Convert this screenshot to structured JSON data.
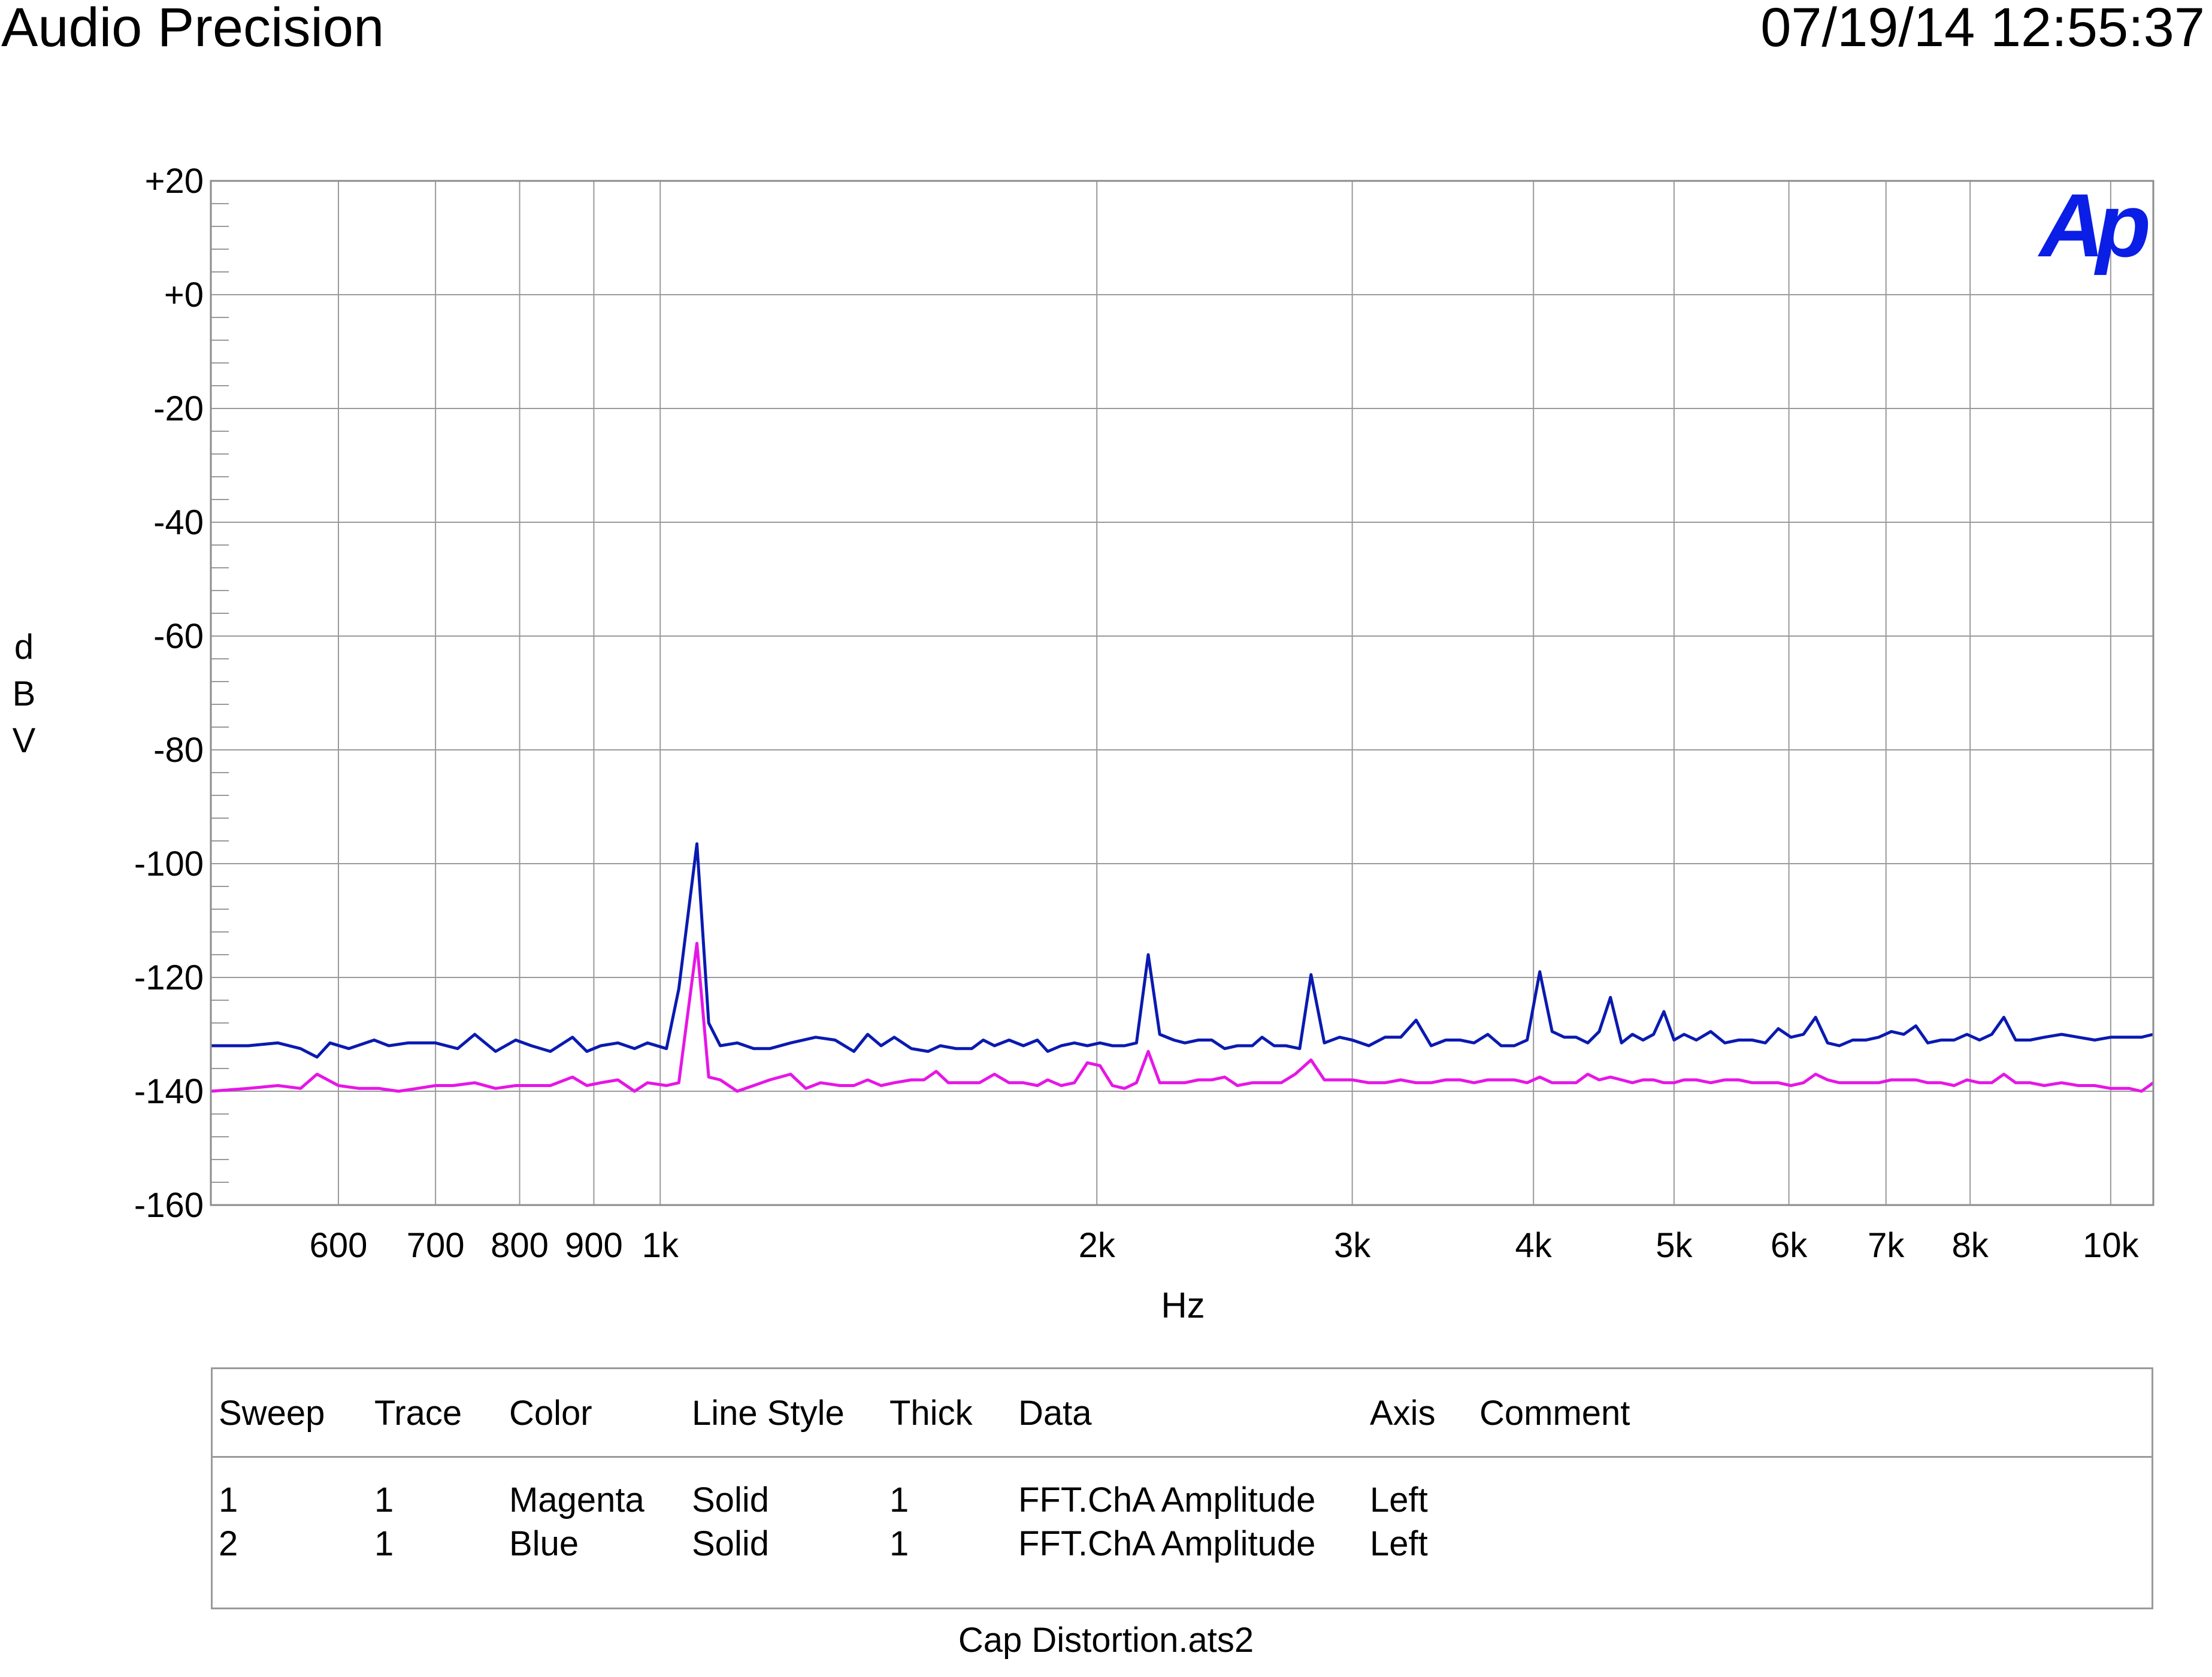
{
  "header": {
    "title": "Audio Precision",
    "timestamp": "07/19/14 12:55:37"
  },
  "logo": {
    "text": "Ap",
    "color": "#0a1ee6"
  },
  "chart_data": {
    "type": "line",
    "xlabel": "Hz",
    "ylabel": "dBV",
    "x_scale": "log",
    "xlim": [
      490,
      10700
    ],
    "ylim": [
      -160,
      20
    ],
    "grid": true,
    "x_ticks": [
      {
        "value": 600,
        "label": "600"
      },
      {
        "value": 700,
        "label": "700"
      },
      {
        "value": 800,
        "label": "800"
      },
      {
        "value": 900,
        "label": "900"
      },
      {
        "value": 1000,
        "label": "1k"
      },
      {
        "value": 2000,
        "label": "2k"
      },
      {
        "value": 3000,
        "label": "3k"
      },
      {
        "value": 4000,
        "label": "4k"
      },
      {
        "value": 5000,
        "label": "5k"
      },
      {
        "value": 6000,
        "label": "6k"
      },
      {
        "value": 7000,
        "label": "7k"
      },
      {
        "value": 8000,
        "label": "8k"
      },
      {
        "value": 10000,
        "label": "10k"
      }
    ],
    "y_ticks": [
      {
        "value": 20,
        "label": "+20"
      },
      {
        "value": 0,
        "label": "+0"
      },
      {
        "value": -20,
        "label": "-20"
      },
      {
        "value": -40,
        "label": "-40"
      },
      {
        "value": -60,
        "label": "-60"
      },
      {
        "value": -80,
        "label": "-80"
      },
      {
        "value": -100,
        "label": "-100"
      },
      {
        "value": -120,
        "label": "-120"
      },
      {
        "value": -140,
        "label": "-140"
      },
      {
        "value": -160,
        "label": "-160"
      }
    ],
    "series": [
      {
        "color": "#0a1ab0",
        "points": [
          [
            490,
            -132
          ],
          [
            520,
            -132
          ],
          [
            545,
            -131.5
          ],
          [
            565,
            -132.5
          ],
          [
            580,
            -134
          ],
          [
            592,
            -131.5
          ],
          [
            610,
            -132.5
          ],
          [
            635,
            -131
          ],
          [
            650,
            -132
          ],
          [
            670,
            -131.5
          ],
          [
            700,
            -131.5
          ],
          [
            725,
            -132.5
          ],
          [
            745,
            -130
          ],
          [
            770,
            -133
          ],
          [
            795,
            -131
          ],
          [
            815,
            -132
          ],
          [
            840,
            -133
          ],
          [
            870,
            -130.5
          ],
          [
            890,
            -133
          ],
          [
            910,
            -132
          ],
          [
            935,
            -131.5
          ],
          [
            960,
            -132.5
          ],
          [
            980,
            -131.5
          ],
          [
            1010,
            -132.5
          ],
          [
            1030,
            -122
          ],
          [
            1060,
            -96.5
          ],
          [
            1080,
            -128
          ],
          [
            1100,
            -132
          ],
          [
            1130,
            -131.5
          ],
          [
            1160,
            -132.5
          ],
          [
            1190,
            -132.5
          ],
          [
            1230,
            -131.5
          ],
          [
            1280,
            -130.5
          ],
          [
            1320,
            -131
          ],
          [
            1360,
            -133
          ],
          [
            1390,
            -130
          ],
          [
            1420,
            -132
          ],
          [
            1450,
            -130.5
          ],
          [
            1490,
            -132.5
          ],
          [
            1530,
            -133
          ],
          [
            1560,
            -132
          ],
          [
            1600,
            -132.5
          ],
          [
            1640,
            -132.5
          ],
          [
            1670,
            -131
          ],
          [
            1700,
            -132
          ],
          [
            1740,
            -131
          ],
          [
            1780,
            -132
          ],
          [
            1820,
            -131
          ],
          [
            1850,
            -133
          ],
          [
            1890,
            -132
          ],
          [
            1930,
            -131.5
          ],
          [
            1970,
            -132
          ],
          [
            2010,
            -131.5
          ],
          [
            2050,
            -132
          ],
          [
            2090,
            -132
          ],
          [
            2130,
            -131.5
          ],
          [
            2170,
            -116
          ],
          [
            2210,
            -130
          ],
          [
            2260,
            -131
          ],
          [
            2300,
            -131.5
          ],
          [
            2350,
            -131
          ],
          [
            2400,
            -131
          ],
          [
            2450,
            -132.5
          ],
          [
            2500,
            -132
          ],
          [
            2560,
            -132
          ],
          [
            2600,
            -130.5
          ],
          [
            2650,
            -132
          ],
          [
            2700,
            -132
          ],
          [
            2760,
            -132.5
          ],
          [
            2810,
            -119.5
          ],
          [
            2870,
            -131.5
          ],
          [
            2940,
            -130.5
          ],
          [
            3000,
            -131
          ],
          [
            3080,
            -132
          ],
          [
            3160,
            -130.5
          ],
          [
            3240,
            -130.5
          ],
          [
            3320,
            -127.5
          ],
          [
            3400,
            -132
          ],
          [
            3480,
            -131
          ],
          [
            3560,
            -131
          ],
          [
            3640,
            -131.5
          ],
          [
            3720,
            -130
          ],
          [
            3800,
            -132
          ],
          [
            3880,
            -132
          ],
          [
            3960,
            -131
          ],
          [
            4040,
            -119
          ],
          [
            4120,
            -129.5
          ],
          [
            4200,
            -130.5
          ],
          [
            4280,
            -130.5
          ],
          [
            4360,
            -131.5
          ],
          [
            4440,
            -129.5
          ],
          [
            4520,
            -123.5
          ],
          [
            4600,
            -131.5
          ],
          [
            4680,
            -130
          ],
          [
            4760,
            -131
          ],
          [
            4840,
            -130
          ],
          [
            4920,
            -126
          ],
          [
            5000,
            -131
          ],
          [
            5080,
            -130
          ],
          [
            5180,
            -131
          ],
          [
            5300,
            -129.5
          ],
          [
            5420,
            -131.5
          ],
          [
            5540,
            -131
          ],
          [
            5660,
            -131
          ],
          [
            5780,
            -131.5
          ],
          [
            5900,
            -129
          ],
          [
            6020,
            -130.5
          ],
          [
            6140,
            -130
          ],
          [
            6260,
            -127
          ],
          [
            6380,
            -131.5
          ],
          [
            6500,
            -132
          ],
          [
            6640,
            -131
          ],
          [
            6780,
            -131
          ],
          [
            6920,
            -130.5
          ],
          [
            7060,
            -129.5
          ],
          [
            7200,
            -130
          ],
          [
            7340,
            -128.5
          ],
          [
            7480,
            -131.5
          ],
          [
            7640,
            -131
          ],
          [
            7800,
            -131
          ],
          [
            7960,
            -130
          ],
          [
            8120,
            -131
          ],
          [
            8280,
            -130
          ],
          [
            8440,
            -127
          ],
          [
            8600,
            -131
          ],
          [
            8800,
            -131
          ],
          [
            9000,
            -130.5
          ],
          [
            9250,
            -130
          ],
          [
            9500,
            -130.5
          ],
          [
            9750,
            -131
          ],
          [
            10000,
            -130.5
          ],
          [
            10300,
            -130.5
          ],
          [
            10500,
            -130.5
          ],
          [
            10700,
            -130
          ]
        ]
      },
      {
        "color": "#e616e6",
        "points": [
          [
            490,
            -140
          ],
          [
            520,
            -139.5
          ],
          [
            545,
            -139
          ],
          [
            565,
            -139.5
          ],
          [
            580,
            -137
          ],
          [
            600,
            -139
          ],
          [
            620,
            -139.5
          ],
          [
            640,
            -139.5
          ],
          [
            660,
            -140
          ],
          [
            680,
            -139.5
          ],
          [
            700,
            -139
          ],
          [
            720,
            -139
          ],
          [
            745,
            -138.5
          ],
          [
            770,
            -139.5
          ],
          [
            795,
            -139
          ],
          [
            815,
            -139
          ],
          [
            840,
            -139
          ],
          [
            870,
            -137.5
          ],
          [
            890,
            -139
          ],
          [
            910,
            -138.5
          ],
          [
            935,
            -138
          ],
          [
            960,
            -140
          ],
          [
            980,
            -138.5
          ],
          [
            1010,
            -139
          ],
          [
            1030,
            -138.5
          ],
          [
            1060,
            -114
          ],
          [
            1080,
            -137.5
          ],
          [
            1100,
            -138
          ],
          [
            1130,
            -140
          ],
          [
            1160,
            -139
          ],
          [
            1190,
            -138
          ],
          [
            1230,
            -137
          ],
          [
            1260,
            -139.5
          ],
          [
            1290,
            -138.5
          ],
          [
            1330,
            -139
          ],
          [
            1360,
            -139
          ],
          [
            1390,
            -138
          ],
          [
            1420,
            -139
          ],
          [
            1450,
            -138.5
          ],
          [
            1490,
            -138
          ],
          [
            1520,
            -138
          ],
          [
            1550,
            -136.5
          ],
          [
            1580,
            -138.5
          ],
          [
            1620,
            -138.5
          ],
          [
            1660,
            -138.5
          ],
          [
            1700,
            -137
          ],
          [
            1740,
            -138.5
          ],
          [
            1780,
            -138.5
          ],
          [
            1820,
            -139
          ],
          [
            1850,
            -138
          ],
          [
            1890,
            -139
          ],
          [
            1930,
            -138.5
          ],
          [
            1970,
            -135
          ],
          [
            2010,
            -135.5
          ],
          [
            2050,
            -139
          ],
          [
            2090,
            -139.5
          ],
          [
            2130,
            -138.5
          ],
          [
            2170,
            -133
          ],
          [
            2210,
            -138.5
          ],
          [
            2260,
            -138.5
          ],
          [
            2300,
            -138.5
          ],
          [
            2350,
            -138
          ],
          [
            2400,
            -138
          ],
          [
            2450,
            -137.5
          ],
          [
            2500,
            -139
          ],
          [
            2560,
            -138.5
          ],
          [
            2620,
            -138.5
          ],
          [
            2680,
            -138.5
          ],
          [
            2740,
            -137
          ],
          [
            2810,
            -134.5
          ],
          [
            2870,
            -138
          ],
          [
            2940,
            -138
          ],
          [
            3000,
            -138
          ],
          [
            3080,
            -138.5
          ],
          [
            3160,
            -138.5
          ],
          [
            3240,
            -138
          ],
          [
            3320,
            -138.5
          ],
          [
            3400,
            -138.5
          ],
          [
            3480,
            -138
          ],
          [
            3560,
            -138
          ],
          [
            3640,
            -138.5
          ],
          [
            3720,
            -138
          ],
          [
            3800,
            -138
          ],
          [
            3880,
            -138
          ],
          [
            3960,
            -138.5
          ],
          [
            4040,
            -137.5
          ],
          [
            4120,
            -138.5
          ],
          [
            4200,
            -138.5
          ],
          [
            4280,
            -138.5
          ],
          [
            4360,
            -137
          ],
          [
            4440,
            -138
          ],
          [
            4520,
            -137.5
          ],
          [
            4600,
            -138
          ],
          [
            4680,
            -138.5
          ],
          [
            4760,
            -138
          ],
          [
            4840,
            -138
          ],
          [
            4920,
            -138.5
          ],
          [
            5000,
            -138.5
          ],
          [
            5080,
            -138
          ],
          [
            5180,
            -138
          ],
          [
            5300,
            -138.5
          ],
          [
            5420,
            -138
          ],
          [
            5540,
            -138
          ],
          [
            5660,
            -138.5
          ],
          [
            5780,
            -138.5
          ],
          [
            5900,
            -138.5
          ],
          [
            6020,
            -139
          ],
          [
            6140,
            -138.5
          ],
          [
            6260,
            -137
          ],
          [
            6380,
            -138
          ],
          [
            6500,
            -138.5
          ],
          [
            6640,
            -138.5
          ],
          [
            6780,
            -138.5
          ],
          [
            6920,
            -138.5
          ],
          [
            7060,
            -138
          ],
          [
            7200,
            -138
          ],
          [
            7340,
            -138
          ],
          [
            7480,
            -138.5
          ],
          [
            7640,
            -138.5
          ],
          [
            7800,
            -139
          ],
          [
            7960,
            -138
          ],
          [
            8120,
            -138.5
          ],
          [
            8280,
            -138.5
          ],
          [
            8440,
            -137
          ],
          [
            8600,
            -138.5
          ],
          [
            8800,
            -138.5
          ],
          [
            9000,
            -139
          ],
          [
            9250,
            -138.5
          ],
          [
            9500,
            -139
          ],
          [
            9750,
            -139
          ],
          [
            10000,
            -139.5
          ],
          [
            10300,
            -139.5
          ],
          [
            10500,
            -140
          ],
          [
            10700,
            -138.5
          ]
        ]
      }
    ]
  },
  "legend": {
    "headers": [
      "Sweep",
      "Trace",
      "Color",
      "Line Style",
      "Thick",
      "Data",
      "Axis",
      "Comment"
    ],
    "rows": [
      [
        "1",
        "1",
        "Magenta",
        "Solid",
        "1",
        "FFT.ChA Amplitude",
        "Left",
        ""
      ],
      [
        "2",
        "1",
        "Blue",
        "Solid",
        "1",
        "FFT.ChA Amplitude",
        "Left",
        ""
      ]
    ]
  },
  "footer": {
    "filename": "Cap Distortion.ats2"
  }
}
